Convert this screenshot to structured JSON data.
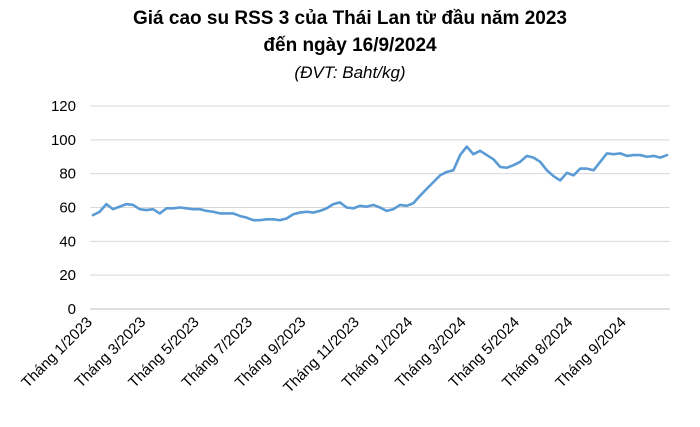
{
  "chart_data": {
    "type": "line",
    "title": "Giá cao su RSS 3 của Thái Lan từ đầu năm 2023",
    "subtitle": "đến ngày 16/9/2024",
    "unit_note": "(ĐVT: Baht/kg)",
    "xlabel": "",
    "ylabel": "",
    "ylim": [
      0,
      120
    ],
    "yticks": [
      0,
      20,
      40,
      60,
      80,
      100,
      120
    ],
    "grid": true,
    "legend": "none",
    "line_color": "#5B9BD5",
    "x_tick_labels": [
      "Tháng 1/2023",
      "Tháng 3/2023",
      "Tháng 5/2023",
      "Tháng 7/2023",
      "Tháng 9/2023",
      "Tháng 11/2023",
      "Tháng 1/2024",
      "Tháng 3/2024",
      "Tháng 5/2024",
      "Tháng 8/2024",
      "Tháng 9/2024"
    ],
    "x_tick_indices": [
      0,
      8,
      16,
      24,
      32,
      40,
      48,
      56,
      64,
      72,
      80
    ],
    "series": [
      {
        "values": [
          55.5,
          57.5,
          62,
          59,
          60.5,
          62,
          61.5,
          59,
          58.5,
          59,
          56.5,
          59.5,
          59.5,
          60,
          59.5,
          59,
          59,
          58,
          57.5,
          56.5,
          56.5,
          56.5,
          55,
          54,
          52.5,
          52.5,
          53,
          53,
          52.5,
          53.5,
          56,
          57,
          57.5,
          57,
          58,
          59.5,
          62,
          63,
          60,
          59.5,
          61,
          60.5,
          61.5,
          60,
          58,
          59,
          61.5,
          61,
          62.5,
          67,
          71,
          75,
          79,
          81,
          82,
          91,
          96,
          91.5,
          93.5,
          91,
          88.5,
          84,
          83.5,
          85,
          87,
          90.5,
          89.5,
          87,
          82,
          78.5,
          76,
          80.5,
          79,
          83,
          83,
          82,
          87,
          92,
          91.5,
          92,
          90.5,
          91,
          91,
          90,
          90.5,
          89.5,
          91
        ]
      }
    ]
  }
}
